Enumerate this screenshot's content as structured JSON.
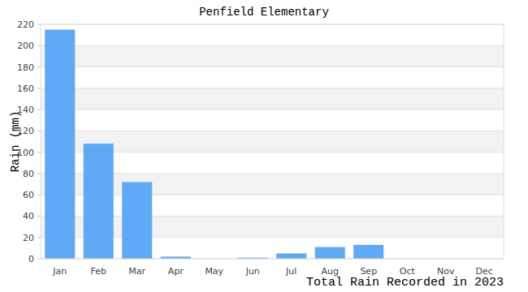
{
  "chart_data": {
    "type": "bar",
    "title": "Penfield Elementary",
    "subtitle": "Total Rain Recorded in 2023",
    "y_label": "Rain (mm)",
    "categories": [
      "Jan",
      "Feb",
      "Mar",
      "Apr",
      "May",
      "Jun",
      "Jul",
      "Aug",
      "Sep",
      "Oct",
      "Nov",
      "Dec"
    ],
    "values": [
      215,
      108,
      72,
      2,
      0,
      1,
      5,
      11,
      13,
      0,
      0,
      0
    ],
    "color": "#60a9f6",
    "ylim": [
      0,
      220
    ],
    "yticks": [
      0,
      20,
      40,
      60,
      80,
      100,
      120,
      140,
      160,
      180,
      200,
      220
    ],
    "grid": true
  }
}
